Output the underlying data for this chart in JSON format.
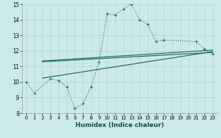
{
  "xlabel": "Humidex (Indice chaleur)",
  "line1_x": [
    0,
    1,
    3,
    4,
    5,
    6,
    7,
    8,
    9,
    10,
    11,
    12,
    13,
    14,
    15,
    16,
    17,
    21,
    22,
    23
  ],
  "line1_y": [
    10.0,
    9.3,
    10.2,
    10.1,
    9.7,
    8.3,
    8.6,
    9.7,
    11.3,
    14.4,
    14.3,
    14.7,
    15.0,
    14.0,
    13.7,
    12.6,
    12.7,
    12.6,
    12.1,
    11.8
  ],
  "line2_x": [
    2,
    23
  ],
  "line2_y": [
    11.3,
    11.9
  ],
  "line3_x": [
    2,
    23
  ],
  "line3_y": [
    11.35,
    12.05
  ],
  "line4_x": [
    2,
    23
  ],
  "line4_y": [
    10.25,
    11.95
  ],
  "ylim": [
    8,
    15
  ],
  "xlim": [
    -0.5,
    23.5
  ],
  "yticks": [
    8,
    9,
    10,
    11,
    12,
    13,
    14,
    15
  ],
  "xticks": [
    0,
    1,
    2,
    3,
    4,
    5,
    6,
    7,
    8,
    9,
    10,
    11,
    12,
    13,
    14,
    15,
    16,
    17,
    18,
    19,
    20,
    21,
    22,
    23
  ],
  "bg_color": "#cce9e9",
  "grid_color": "#add4d4",
  "line_color": "#1a6b6b"
}
